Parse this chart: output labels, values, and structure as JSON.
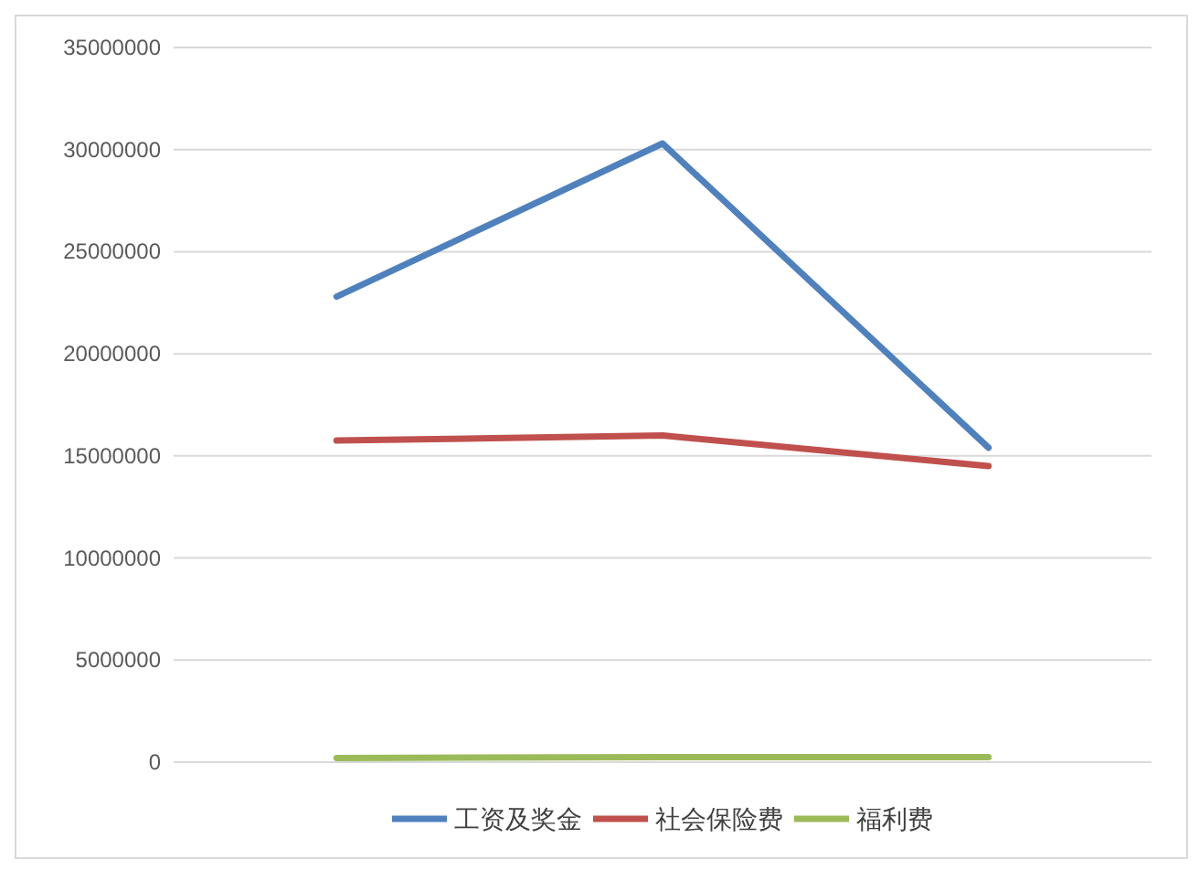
{
  "chart_data": {
    "type": "line",
    "categories": [
      null,
      null,
      null
    ],
    "series": [
      {
        "name": "工资及奖金",
        "color": "#4f81bd",
        "values": [
          22800000,
          30300000,
          15400000
        ]
      },
      {
        "name": "社会保险费",
        "color": "#c0504d",
        "values": [
          15750000,
          16000000,
          14500000
        ]
      },
      {
        "name": "福利费",
        "color": "#9bbb59",
        "values": [
          200000,
          250000,
          250000
        ]
      }
    ],
    "ylim": [
      0,
      35000000
    ],
    "yticks": [
      0,
      5000000,
      10000000,
      15000000,
      20000000,
      25000000,
      30000000,
      35000000
    ],
    "grid": "y",
    "legend": "bottom"
  }
}
